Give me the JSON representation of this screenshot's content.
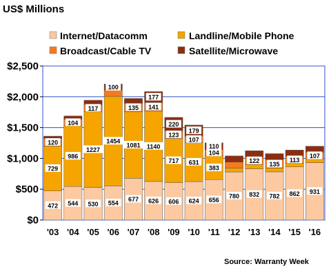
{
  "chart_data": {
    "type": "bar",
    "stacked": true,
    "title": "US$ Millions",
    "source": "Source:  Warranty  Week",
    "categories": [
      "'03",
      "'04",
      "'05",
      "'06",
      "'07",
      "'08",
      "'09",
      "'10",
      "'11",
      "'12",
      "'13",
      "'14",
      "'15",
      "'16"
    ],
    "ylim": [
      0,
      2500
    ],
    "yticks": [
      0,
      500,
      1000,
      1500,
      2000,
      2500
    ],
    "ytick_labels": [
      "$0",
      "$500",
      "$1,000",
      "$1,500",
      "$2,000",
      "$2,500"
    ],
    "grid": true,
    "legend_position": "top",
    "series": [
      {
        "name": "Internet/Datacomm",
        "color": "#fcc9a0",
        "values": [
          472,
          544,
          530,
          554,
          677,
          626,
          606,
          624,
          656,
          780,
          832,
          782,
          862,
          931
        ],
        "labels": [
          "472",
          "544",
          "530",
          "554",
          "677",
          "626",
          "606",
          "624",
          "656",
          "780",
          "832",
          "782",
          "862",
          "931"
        ]
      },
      {
        "name": "Landline/Mobile Phone",
        "color": "#f5a400",
        "values": [
          729,
          986,
          1227,
          1454,
          1081,
          1140,
          717,
          631,
          383,
          60,
          70,
          60,
          60,
          60
        ],
        "labels": [
          "729",
          "986",
          "1227",
          "1454",
          "1081",
          "1140",
          "717",
          "631",
          "383",
          "",
          "",
          "",
          "",
          ""
        ]
      },
      {
        "name": "Broadcast/Cable TV",
        "color": "#f47a20",
        "values": [
          120,
          104,
          117,
          100,
          135,
          141,
          123,
          107,
          104,
          100,
          122,
          135,
          113,
          107
        ],
        "labels": [
          "120",
          "104",
          "117",
          "",
          "135",
          "141",
          "123",
          "107",
          "104",
          "",
          "122",
          "135",
          "113",
          "107"
        ]
      },
      {
        "name": "Satellite/Microwave",
        "color": "#8b2e10",
        "values": [
          40,
          55,
          70,
          100,
          80,
          177,
          220,
          179,
          110,
          100,
          100,
          100,
          100,
          100
        ],
        "labels": [
          "",
          "",
          "",
          "100",
          "",
          "177",
          "220",
          "179",
          "110",
          "",
          "",
          "",
          "",
          ""
        ]
      }
    ]
  }
}
